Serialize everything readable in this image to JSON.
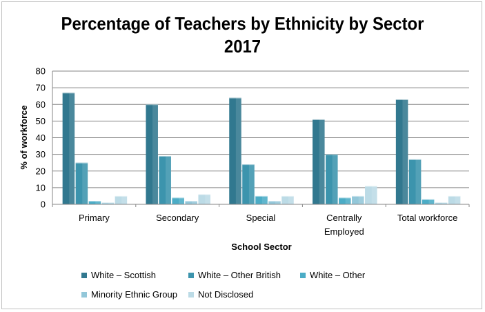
{
  "chart_data": {
    "type": "bar",
    "title": "Percentage of Teachers by Ethnicity by Sector\n2017",
    "xlabel": "School Sector",
    "ylabel": "% of workforce",
    "ylim": [
      0,
      80
    ],
    "yticks": [
      0,
      10,
      20,
      30,
      40,
      50,
      60,
      70,
      80
    ],
    "grid": true,
    "legend_position": "bottom",
    "categories": [
      "Primary",
      "Secondary",
      "Special",
      "Centrally\nEmployed",
      "Total workforce"
    ],
    "series": [
      {
        "name": "White – Scottish",
        "color": "#31788f",
        "values": [
          67,
          60,
          64,
          51,
          63
        ]
      },
      {
        "name": "White – Other British",
        "color": "#3c94ad",
        "values": [
          25,
          29,
          24,
          30,
          27
        ]
      },
      {
        "name": "White – Other",
        "color": "#4bacc6",
        "values": [
          2,
          4,
          5,
          4,
          3
        ]
      },
      {
        "name": "Minority Ethnic Group",
        "color": "#93c7d9",
        "values": [
          1,
          2,
          2,
          5,
          1
        ]
      },
      {
        "name": "Not Disclosed",
        "color": "#bcdbe6",
        "values": [
          5,
          6,
          5,
          11,
          5
        ]
      }
    ]
  }
}
